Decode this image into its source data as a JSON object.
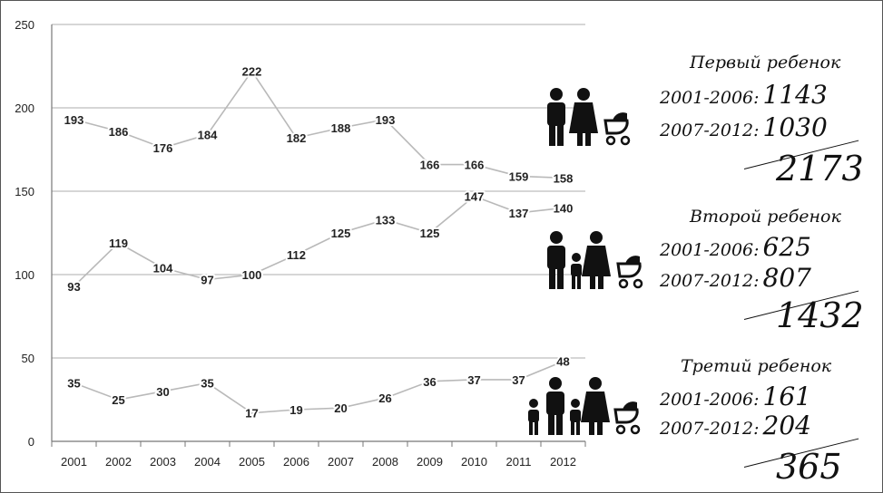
{
  "chart_data": {
    "type": "line",
    "categories": [
      "2001",
      "2002",
      "2003",
      "2004",
      "2005",
      "2006",
      "2007",
      "2008",
      "2009",
      "2010",
      "2011",
      "2012"
    ],
    "ylim": [
      0,
      250
    ],
    "yticks": [
      "0",
      "50",
      "100",
      "150",
      "200",
      "250"
    ],
    "grid": true,
    "series": [
      {
        "name": "Первый ребенок",
        "values": [
          193,
          186,
          176,
          184,
          222,
          182,
          188,
          193,
          166,
          166,
          159,
          158
        ]
      },
      {
        "name": "Второй ребенок",
        "values": [
          93,
          119,
          104,
          97,
          100,
          112,
          125,
          133,
          125,
          147,
          137,
          140
        ]
      },
      {
        "name": "Третий ребенок",
        "values": [
          35,
          25,
          30,
          35,
          17,
          19,
          20,
          26,
          36,
          37,
          37,
          48
        ]
      }
    ],
    "line_color": "#b9b9b9",
    "grid_color": "#bdbdbd"
  },
  "panels": [
    {
      "title": "Первый ребенок",
      "p1_label": "2001-2006:",
      "p1_value": "1143",
      "p2_label": "2007-2012:",
      "p2_value": "1030",
      "total": "2173",
      "icon": "couple-with-stroller-icon"
    },
    {
      "title": "Второй ребенок",
      "p1_label": "2001-2006:",
      "p1_value": "625",
      "p2_label": "2007-2012:",
      "p2_value": "807",
      "total": "1432",
      "icon": "family-one-child-stroller-icon"
    },
    {
      "title": "Третий ребенок",
      "p1_label": "2001-2006:",
      "p1_value": "161",
      "p2_label": "2007-2012:",
      "p2_value": "204",
      "total": "365",
      "icon": "family-two-children-stroller-icon"
    }
  ]
}
